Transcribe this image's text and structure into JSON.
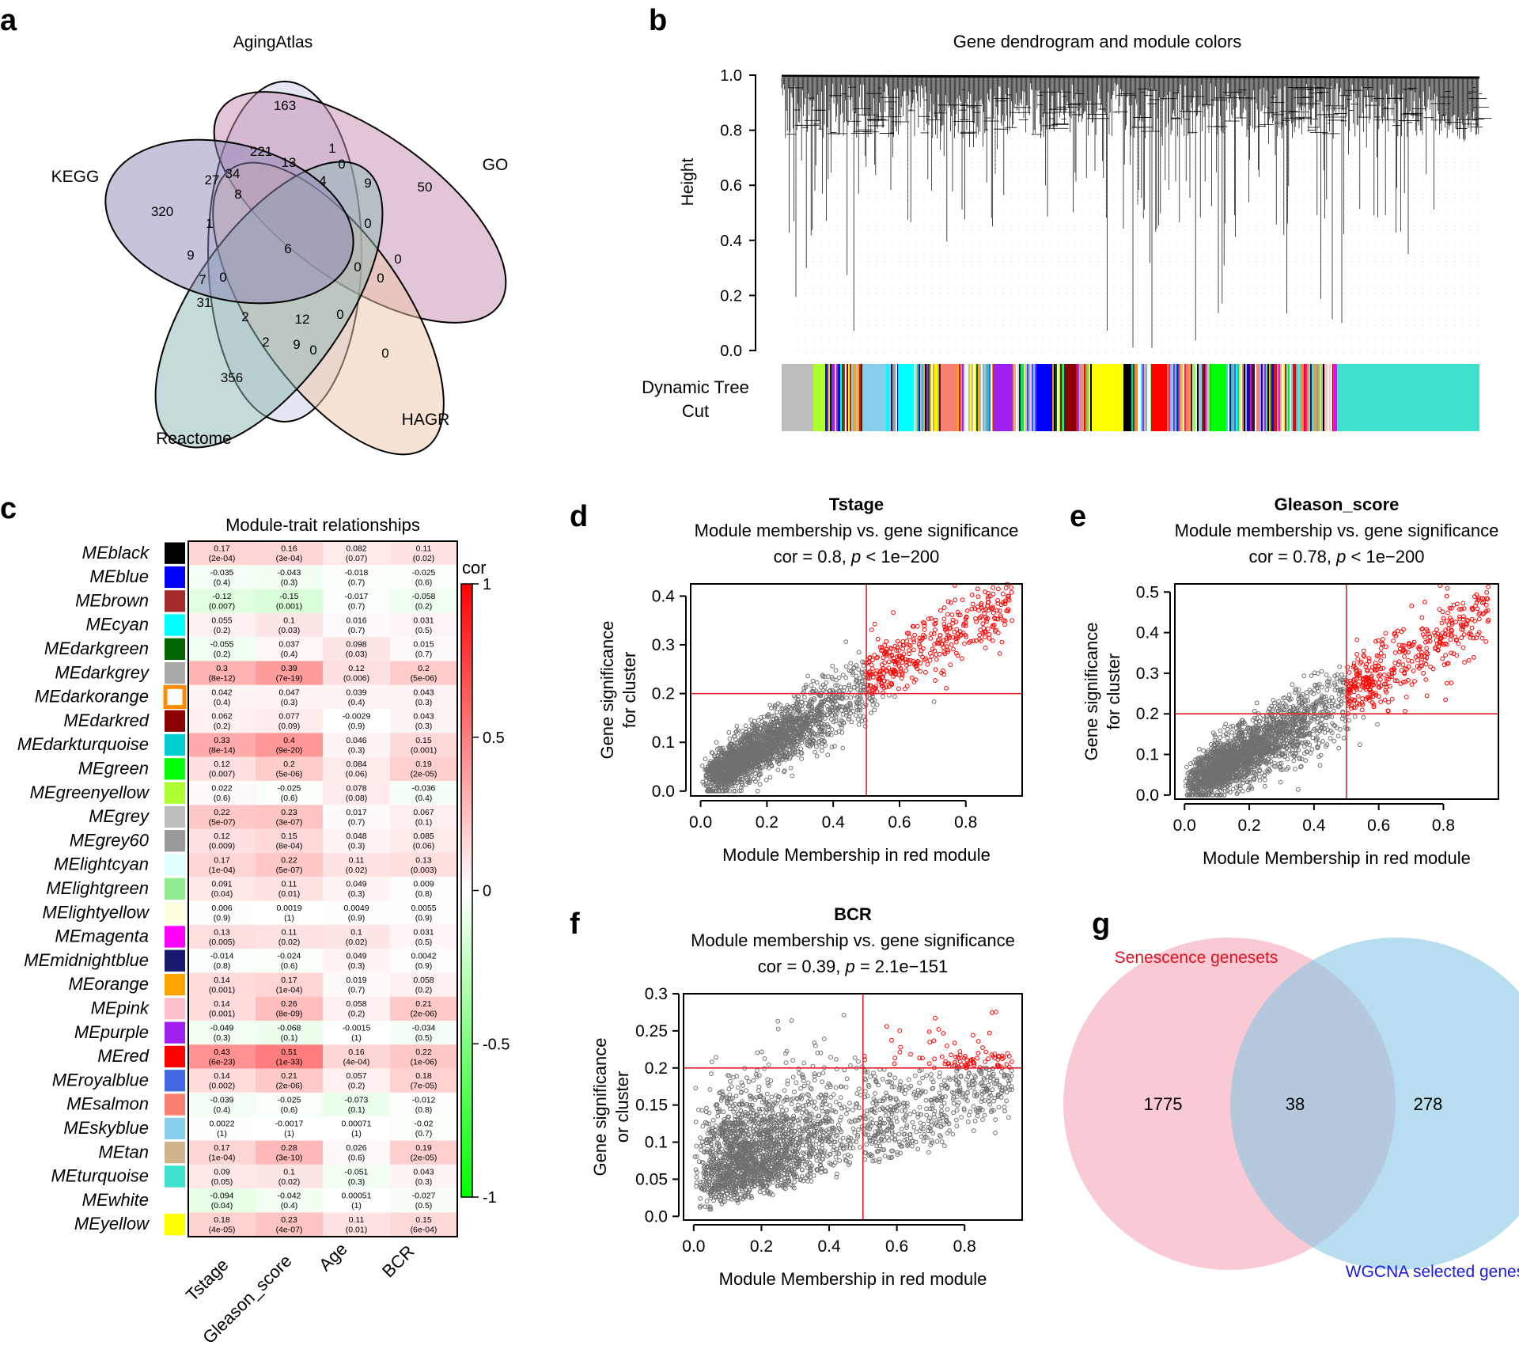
{
  "panels": {
    "a": {
      "letter": "a",
      "sets": [
        "AgingAtlas",
        "GO",
        "HAGR",
        "Reactome",
        "KEGG"
      ],
      "set_colors": [
        "#c9d0e3",
        "#c58bb0",
        "#efc6a8",
        "#8bb7b3",
        "#8d88b8"
      ],
      "region_values": [
        "163",
        "50",
        "0",
        "356",
        "320",
        "221",
        "1",
        "13",
        "0",
        "4",
        "9",
        "8",
        "34",
        "27",
        "1",
        "6",
        "9",
        "7",
        "0",
        "0",
        "0",
        "0",
        "0",
        "31",
        "2",
        "12",
        "0",
        "2",
        "9",
        "0"
      ]
    },
    "b": {
      "letter": "b",
      "title": "Gene dendrogram and module colors",
      "ylabel": "Height",
      "yticks": [
        "1.0",
        "0.8",
        "0.6",
        "0.4",
        "0.2",
        "0.0"
      ],
      "tree_cut_label_1": "Dynamic Tree",
      "tree_cut_label_2": "Cut"
    },
    "c": {
      "letter": "c",
      "title": "Module-trait relationships",
      "legend_title": "cor",
      "legend_ticks": [
        "1",
        "0.5",
        "0",
        "-0.5",
        "-1"
      ],
      "traits": [
        "Tstage",
        "Gleason_score",
        "Age",
        "BCR"
      ]
    },
    "d": {
      "letter": "d"
    },
    "e": {
      "letter": "e"
    },
    "f": {
      "letter": "f"
    },
    "g": {
      "letter": "g",
      "set_a": "Senescence genesets",
      "set_b": "WGCNA selected genes",
      "only_a": "1775",
      "both": "38",
      "only_b": "278",
      "set_a_color": "#e30f1f",
      "set_b_color": "#1a1adb"
    }
  },
  "chart_data": [
    {
      "type": "heatmap",
      "panel": "c",
      "title": "Module-trait relationships",
      "columns": [
        "Tstage",
        "Gleason_score",
        "Age",
        "BCR"
      ],
      "colorbar": {
        "label": "cor",
        "range": [
          -1,
          1
        ]
      },
      "rows": [
        {
          "name": "MEblack",
          "color": "#000000",
          "cor": [
            "0.17",
            "0.16",
            "0.082",
            "0.11"
          ],
          "p": [
            "(2e-04)",
            "(3e-04)",
            "(0.07)",
            "(0.02)"
          ]
        },
        {
          "name": "MEblue",
          "color": "#0000ff",
          "cor": [
            "-0.035",
            "-0.043",
            "-0.018",
            "-0.025"
          ],
          "p": [
            "(0.4)",
            "(0.3)",
            "(0.7)",
            "(0.6)"
          ]
        },
        {
          "name": "MEbrown",
          "color": "#a52a2a",
          "cor": [
            "-0.12",
            "-0.15",
            "-0.017",
            "-0.058"
          ],
          "p": [
            "(0.007)",
            "(0.001)",
            "(0.7)",
            "(0.2)"
          ]
        },
        {
          "name": "MEcyan",
          "color": "#00ffff",
          "cor": [
            "0.055",
            "0.1",
            "0.016",
            "0.031"
          ],
          "p": [
            "(0.2)",
            "(0.03)",
            "(0.7)",
            "(0.5)"
          ]
        },
        {
          "name": "MEdarkgreen",
          "color": "#006400",
          "cor": [
            "-0.055",
            "0.037",
            "0.098",
            "0.015"
          ],
          "p": [
            "(0.2)",
            "(0.4)",
            "(0.03)",
            "(0.7)"
          ]
        },
        {
          "name": "MEdarkgrey",
          "color": "#a9a9a9",
          "cor": [
            "0.3",
            "0.39",
            "0.12",
            "0.2"
          ],
          "p": [
            "(8e-12)",
            "(7e-19)",
            "(0.006)",
            "(5e-06)"
          ]
        },
        {
          "name": "MEdarkorange",
          "color": "#ff8c00",
          "cor": [
            "0.042",
            "0.047",
            "0.039",
            "0.043"
          ],
          "p": [
            "(0.4)",
            "(0.3)",
            "(0.4)",
            "(0.3)"
          ]
        },
        {
          "name": "MEdarkred",
          "color": "#8b0000",
          "cor": [
            "0.062",
            "0.077",
            "-0.0029",
            "0.043"
          ],
          "p": [
            "(0.2)",
            "(0.09)",
            "(0.9)",
            "(0.3)"
          ]
        },
        {
          "name": "MEdarkturquoise",
          "color": "#00ced1",
          "cor": [
            "0.33",
            "0.4",
            "0.046",
            "0.15"
          ],
          "p": [
            "(8e-14)",
            "(9e-20)",
            "(0.3)",
            "(0.001)"
          ]
        },
        {
          "name": "MEgreen",
          "color": "#00ff00",
          "cor": [
            "0.12",
            "0.2",
            "0.084",
            "0.19"
          ],
          "p": [
            "(0.007)",
            "(5e-06)",
            "(0.06)",
            "(2e-05)"
          ]
        },
        {
          "name": "MEgreenyellow",
          "color": "#adff2f",
          "cor": [
            "0.022",
            "-0.025",
            "0.078",
            "-0.036"
          ],
          "p": [
            "(0.6)",
            "(0.6)",
            "(0.08)",
            "(0.4)"
          ]
        },
        {
          "name": "MEgrey",
          "color": "#bebebe",
          "cor": [
            "0.22",
            "0.23",
            "0.017",
            "0.067"
          ],
          "p": [
            "(5e-07)",
            "(3e-07)",
            "(0.7)",
            "(0.1)"
          ]
        },
        {
          "name": "MEgrey60",
          "color": "#999999",
          "cor": [
            "0.12",
            "0.15",
            "0.048",
            "0.085"
          ],
          "p": [
            "(0.009)",
            "(8e-04)",
            "(0.3)",
            "(0.06)"
          ]
        },
        {
          "name": "MElightcyan",
          "color": "#e0ffff",
          "cor": [
            "0.17",
            "0.22",
            "0.11",
            "0.13"
          ],
          "p": [
            "(1e-04)",
            "(5e-07)",
            "(0.02)",
            "(0.003)"
          ]
        },
        {
          "name": "MElightgreen",
          "color": "#90ee90",
          "cor": [
            "0.091",
            "0.11",
            "0.049",
            "0.009"
          ],
          "p": [
            "(0.04)",
            "(0.01)",
            "(0.3)",
            "(0.8)"
          ]
        },
        {
          "name": "MElightyellow",
          "color": "#ffffe0",
          "cor": [
            "0.006",
            "0.0019",
            "0.0049",
            "0.0055"
          ],
          "p": [
            "(0.9)",
            "(1)",
            "(0.9)",
            "(0.9)"
          ]
        },
        {
          "name": "MEmagenta",
          "color": "#ff00ff",
          "cor": [
            "0.13",
            "0.11",
            "0.1",
            "0.031"
          ],
          "p": [
            "(0.005)",
            "(0.02)",
            "(0.02)",
            "(0.5)"
          ]
        },
        {
          "name": "MEmidnightblue",
          "color": "#191970",
          "cor": [
            "-0.014",
            "-0.024",
            "0.049",
            "0.0042"
          ],
          "p": [
            "(0.8)",
            "(0.6)",
            "(0.3)",
            "(0.9)"
          ]
        },
        {
          "name": "MEorange",
          "color": "#ffa500",
          "cor": [
            "0.14",
            "0.17",
            "0.019",
            "0.058"
          ],
          "p": [
            "(0.001)",
            "(1e-04)",
            "(0.7)",
            "(0.2)"
          ]
        },
        {
          "name": "MEpink",
          "color": "#ffc0cb",
          "cor": [
            "0.14",
            "0.26",
            "0.058",
            "0.21"
          ],
          "p": [
            "(0.001)",
            "(8e-09)",
            "(0.2)",
            "(2e-06)"
          ]
        },
        {
          "name": "MEpurple",
          "color": "#a020f0",
          "cor": [
            "-0.049",
            "-0.068",
            "-0.0015",
            "-0.034"
          ],
          "p": [
            "(0.3)",
            "(0.1)",
            "(1)",
            "(0.5)"
          ]
        },
        {
          "name": "MEred",
          "color": "#ff0000",
          "cor": [
            "0.43",
            "0.51",
            "0.16",
            "0.22"
          ],
          "p": [
            "(6e-23)",
            "(1e-33)",
            "(4e-04)",
            "(1e-06)"
          ]
        },
        {
          "name": "MEroyalblue",
          "color": "#4169e1",
          "cor": [
            "0.14",
            "0.21",
            "0.057",
            "0.18"
          ],
          "p": [
            "(0.002)",
            "(2e-06)",
            "(0.2)",
            "(7e-05)"
          ]
        },
        {
          "name": "MEsalmon",
          "color": "#fa8072",
          "cor": [
            "-0.039",
            "-0.025",
            "-0.073",
            "-0.012"
          ],
          "p": [
            "(0.4)",
            "(0.6)",
            "(0.1)",
            "(0.8)"
          ]
        },
        {
          "name": "MEskyblue",
          "color": "#87ceeb",
          "cor": [
            "0.0022",
            "-0.0017",
            "0.00071",
            "-0.02"
          ],
          "p": [
            "(1)",
            "(1)",
            "(1)",
            "(0.7)"
          ]
        },
        {
          "name": "MEtan",
          "color": "#d2b48c",
          "cor": [
            "0.17",
            "0.28",
            "0.026",
            "0.19"
          ],
          "p": [
            "(1e-04)",
            "(3e-10)",
            "(0.6)",
            "(2e-05)"
          ]
        },
        {
          "name": "MEturquoise",
          "color": "#40e0d0",
          "cor": [
            "0.09",
            "0.1",
            "-0.051",
            "0.043"
          ],
          "p": [
            "(0.05)",
            "(0.02)",
            "(0.3)",
            "(0.3)"
          ]
        },
        {
          "name": "MEwhite",
          "color": "#ffffff",
          "cor": [
            "-0.094",
            "-0.042",
            "0.00051",
            "-0.027"
          ],
          "p": [
            "(0.04)",
            "(0.4)",
            "(1)",
            "(0.5)"
          ]
        },
        {
          "name": "MEyellow",
          "color": "#ffff00",
          "cor": [
            "0.18",
            "0.23",
            "0.11",
            "0.15"
          ],
          "p": [
            "(4e-05)",
            "(4e-07)",
            "(0.01)",
            "(6e-04)"
          ]
        }
      ]
    },
    {
      "type": "scatter",
      "panel": "d",
      "title": "Tstage",
      "subtitle": "Module membership vs. gene significance",
      "stat_prefix": "cor = 0.8, ",
      "stat_p": "p",
      "stat_suffix": " < 1e−200",
      "xlabel": "Module Membership in red module",
      "ylabel_1": "Gene significance",
      "ylabel_2": "for cluster",
      "xlim": [
        -0.03,
        0.97
      ],
      "ylim": [
        -0.01,
        0.425
      ],
      "xticks": [
        "0.0",
        "0.2",
        "0.4",
        "0.6",
        "0.8"
      ],
      "yticks": [
        "0.0",
        "0.1",
        "0.2",
        "0.3",
        "0.4"
      ],
      "threshold_x": 0.5,
      "threshold_y": 0.2,
      "cor": 0.8,
      "n_points": 2600
    },
    {
      "type": "scatter",
      "panel": "e",
      "title": "Gleason_score",
      "subtitle": "Module membership vs. gene significance",
      "stat_prefix": "cor = 0.78, ",
      "stat_p": "p",
      "stat_suffix": " < 1e−200",
      "xlabel": "Module Membership in red module",
      "ylabel_1": "Gene significance",
      "ylabel_2": "for cluster",
      "xlim": [
        -0.03,
        0.97
      ],
      "ylim": [
        -0.01,
        0.52
      ],
      "xticks": [
        "0.0",
        "0.2",
        "0.4",
        "0.6",
        "0.8"
      ],
      "yticks": [
        "0.0",
        "0.1",
        "0.2",
        "0.3",
        "0.4",
        "0.5"
      ],
      "threshold_x": 0.5,
      "threshold_y": 0.2,
      "cor": 0.78,
      "n_points": 2600
    },
    {
      "type": "scatter",
      "panel": "f",
      "title": "BCR",
      "subtitle": "Module membership vs. gene significance",
      "stat_prefix": "cor = 0.39, ",
      "stat_p": "p",
      "stat_suffix": " = 2.1e−151",
      "xlabel": "Module Membership in red module",
      "ylabel_1": "Gene significance",
      "ylabel_2": "or cluster",
      "xlim": [
        -0.03,
        0.97
      ],
      "ylim": [
        -0.005,
        0.3
      ],
      "xticks": [
        "0.0",
        "0.2",
        "0.4",
        "0.6",
        "0.8"
      ],
      "yticks": [
        "0.0",
        "0.05",
        "0.1",
        "0.15",
        "0.2",
        "0.25",
        "0.3"
      ],
      "threshold_x": 0.5,
      "threshold_y": 0.2,
      "cor": 0.39,
      "n_points": 2600
    }
  ]
}
